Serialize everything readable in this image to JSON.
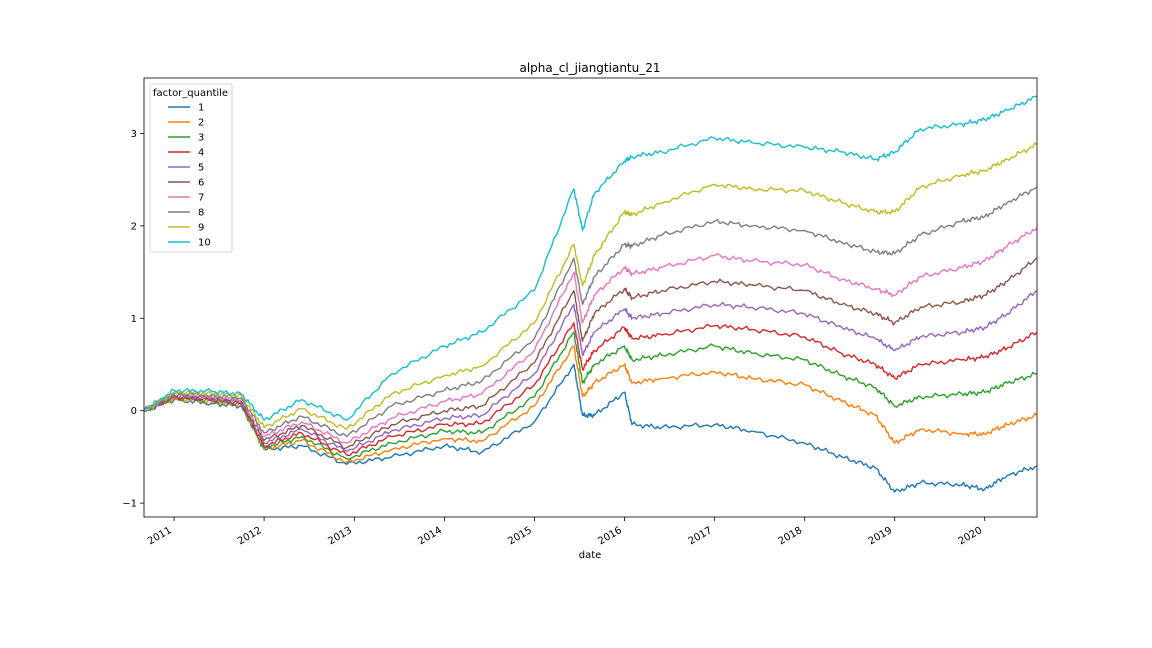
{
  "chart_data": {
    "type": "line",
    "title": "alpha_cl_jiangtiantu_21",
    "xlabel": "date",
    "ylabel": "",
    "x_ticks": [
      "2011",
      "2012",
      "2013",
      "2014",
      "2015",
      "2016",
      "2017",
      "2018",
      "2019",
      "2020"
    ],
    "y_ticks": [
      -1,
      0,
      1,
      2,
      3
    ],
    "xlim": [
      "2010-09-01",
      "2020-07-31"
    ],
    "ylim": [
      -1.15,
      3.6
    ],
    "grid": false,
    "legend": {
      "title": "factor_quantile",
      "position": "top-left"
    },
    "x": [
      "2010-09-01",
      "2011-01-01",
      "2011-06-01",
      "2011-10-01",
      "2012-01-01",
      "2012-06-01",
      "2012-12-01",
      "2013-06-01",
      "2014-01-01",
      "2014-06-01",
      "2015-01-01",
      "2015-06-10",
      "2015-07-15",
      "2015-09-01",
      "2016-01-01",
      "2016-02-01",
      "2016-06-01",
      "2017-01-01",
      "2017-06-01",
      "2018-01-01",
      "2018-06-01",
      "2018-10-15",
      "2019-01-01",
      "2019-04-15",
      "2019-10-01",
      "2020-01-01",
      "2020-04-01",
      "2020-07-31"
    ],
    "series": [
      {
        "name": "1",
        "color": "#1f77b4",
        "values": [
          0.0,
          0.12,
          0.08,
          0.05,
          -0.42,
          -0.38,
          -0.58,
          -0.5,
          -0.38,
          -0.45,
          -0.12,
          0.5,
          -0.05,
          -0.05,
          0.2,
          -0.15,
          -0.18,
          -0.15,
          -0.22,
          -0.35,
          -0.5,
          -0.62,
          -0.88,
          -0.78,
          -0.8,
          -0.85,
          -0.7,
          -0.6
        ]
      },
      {
        "name": "2",
        "color": "#ff7f0e",
        "values": [
          0.0,
          0.13,
          0.1,
          0.06,
          -0.42,
          -0.32,
          -0.56,
          -0.42,
          -0.3,
          -0.33,
          0.05,
          0.7,
          0.15,
          0.3,
          0.5,
          0.3,
          0.35,
          0.42,
          0.35,
          0.28,
          0.1,
          -0.05,
          -0.35,
          -0.2,
          -0.25,
          -0.25,
          -0.15,
          -0.05
        ]
      },
      {
        "name": "3",
        "color": "#2ca02c",
        "values": [
          0.0,
          0.14,
          0.11,
          0.07,
          -0.4,
          -0.28,
          -0.52,
          -0.35,
          -0.22,
          -0.24,
          0.15,
          0.85,
          0.3,
          0.5,
          0.7,
          0.55,
          0.6,
          0.7,
          0.62,
          0.55,
          0.38,
          0.25,
          0.05,
          0.15,
          0.18,
          0.2,
          0.3,
          0.4
        ]
      },
      {
        "name": "4",
        "color": "#d62728",
        "values": [
          0.0,
          0.15,
          0.12,
          0.08,
          -0.38,
          -0.24,
          -0.48,
          -0.28,
          -0.15,
          -0.14,
          0.28,
          0.95,
          0.45,
          0.65,
          0.9,
          0.78,
          0.82,
          0.92,
          0.88,
          0.8,
          0.62,
          0.5,
          0.35,
          0.5,
          0.55,
          0.58,
          0.68,
          0.85
        ]
      },
      {
        "name": "5",
        "color": "#9467bd",
        "values": [
          0.0,
          0.16,
          0.13,
          0.09,
          -0.35,
          -0.2,
          -0.44,
          -0.22,
          -0.08,
          -0.05,
          0.4,
          1.15,
          0.6,
          0.85,
          1.1,
          1.0,
          1.05,
          1.15,
          1.12,
          1.05,
          0.9,
          0.78,
          0.65,
          0.8,
          0.85,
          0.9,
          1.05,
          1.3
        ]
      },
      {
        "name": "6",
        "color": "#8c564b",
        "values": [
          0.0,
          0.17,
          0.14,
          0.1,
          -0.32,
          -0.16,
          -0.4,
          -0.15,
          0.0,
          0.05,
          0.52,
          1.3,
          0.75,
          1.05,
          1.32,
          1.22,
          1.3,
          1.4,
          1.36,
          1.3,
          1.15,
          1.05,
          0.95,
          1.12,
          1.18,
          1.25,
          1.4,
          1.65
        ]
      },
      {
        "name": "7",
        "color": "#e377c2",
        "values": [
          0.0,
          0.18,
          0.15,
          0.12,
          -0.28,
          -0.12,
          -0.35,
          -0.08,
          0.1,
          0.18,
          0.65,
          1.5,
          0.95,
          1.25,
          1.55,
          1.48,
          1.55,
          1.68,
          1.62,
          1.58,
          1.42,
          1.32,
          1.25,
          1.45,
          1.55,
          1.62,
          1.78,
          1.98
        ]
      },
      {
        "name": "8",
        "color": "#7f7f7f",
        "values": [
          0.0,
          0.19,
          0.17,
          0.14,
          -0.24,
          -0.06,
          -0.28,
          0.05,
          0.22,
          0.32,
          0.78,
          1.65,
          1.15,
          1.45,
          1.8,
          1.78,
          1.9,
          2.05,
          2.0,
          1.95,
          1.82,
          1.72,
          1.7,
          1.9,
          2.05,
          2.1,
          2.25,
          2.42
        ]
      },
      {
        "name": "9",
        "color": "#bcbd22",
        "values": [
          0.0,
          0.2,
          0.19,
          0.16,
          -0.18,
          0.02,
          -0.2,
          0.18,
          0.38,
          0.48,
          0.95,
          1.8,
          1.35,
          1.68,
          2.15,
          2.12,
          2.25,
          2.45,
          2.4,
          2.38,
          2.25,
          2.15,
          2.15,
          2.42,
          2.55,
          2.6,
          2.72,
          2.88
        ]
      },
      {
        "name": "10",
        "color": "#17becf",
        "values": [
          0.0,
          0.22,
          0.21,
          0.18,
          -0.1,
          0.12,
          -0.1,
          0.4,
          0.7,
          0.85,
          1.3,
          2.4,
          1.95,
          2.35,
          2.7,
          2.75,
          2.8,
          2.95,
          2.9,
          2.85,
          2.8,
          2.72,
          2.8,
          3.05,
          3.1,
          3.15,
          3.25,
          3.4
        ]
      }
    ]
  }
}
